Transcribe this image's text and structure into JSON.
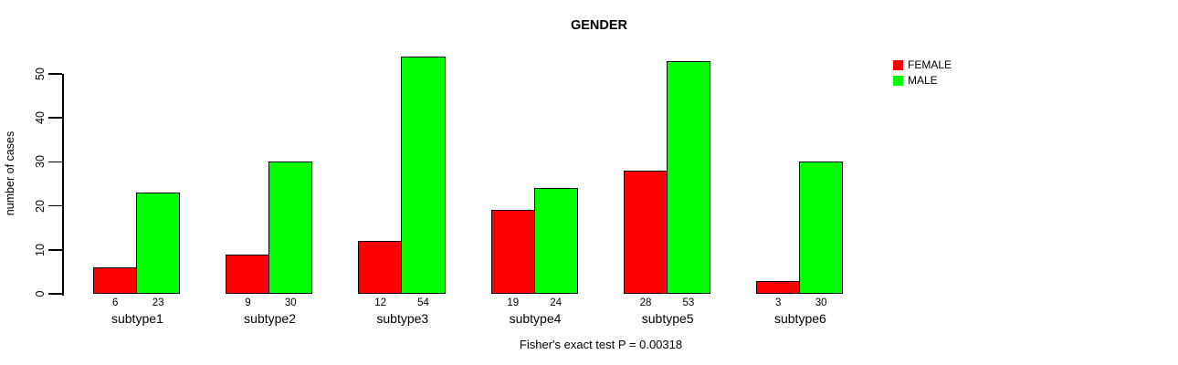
{
  "chart_data": {
    "type": "bar",
    "title": "GENDER",
    "ylabel": "number of cases",
    "xlabel": "",
    "categories": [
      "subtype1",
      "subtype2",
      "subtype3",
      "subtype4",
      "subtype5",
      "subtype6"
    ],
    "series": [
      {
        "name": "FEMALE",
        "color": "#ff0000",
        "values": [
          6,
          9,
          12,
          19,
          28,
          3
        ]
      },
      {
        "name": "MALE",
        "color": "#00ff00",
        "values": [
          23,
          30,
          54,
          24,
          53,
          30
        ]
      }
    ],
    "yticks": [
      0,
      10,
      20,
      30,
      40,
      50
    ],
    "ylim": [
      0,
      55
    ],
    "grid": false,
    "legend_position": "right-outside",
    "bar_border_color": "#000000",
    "value_labels_shown": true,
    "caption": "Fisher's exact test P = 0.00318"
  }
}
